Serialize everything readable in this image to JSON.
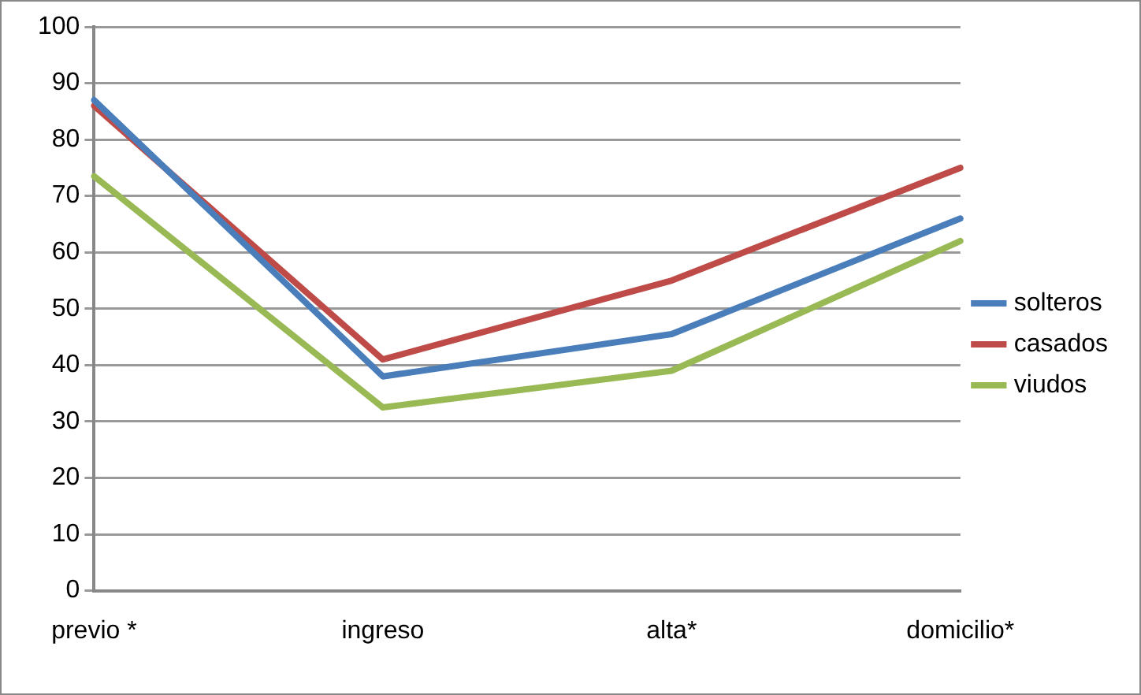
{
  "chart_data": {
    "type": "line",
    "categories": [
      "previo *",
      "ingreso",
      "alta*",
      "domicilio*"
    ],
    "series": [
      {
        "name": "solteros",
        "color": "#4a7ebb",
        "values": [
          87,
          38,
          45.5,
          66
        ]
      },
      {
        "name": "casados",
        "color": "#be4b48",
        "values": [
          86,
          41,
          55,
          75
        ]
      },
      {
        "name": "viudos",
        "color": "#98b954",
        "values": [
          73.5,
          32.5,
          39,
          62
        ]
      }
    ],
    "ylim": [
      0,
      100
    ],
    "yticks": [
      0,
      10,
      20,
      30,
      40,
      50,
      60,
      70,
      80,
      90,
      100
    ],
    "grid": "y",
    "legend": "right",
    "marker": "none",
    "line_style": "solid"
  }
}
